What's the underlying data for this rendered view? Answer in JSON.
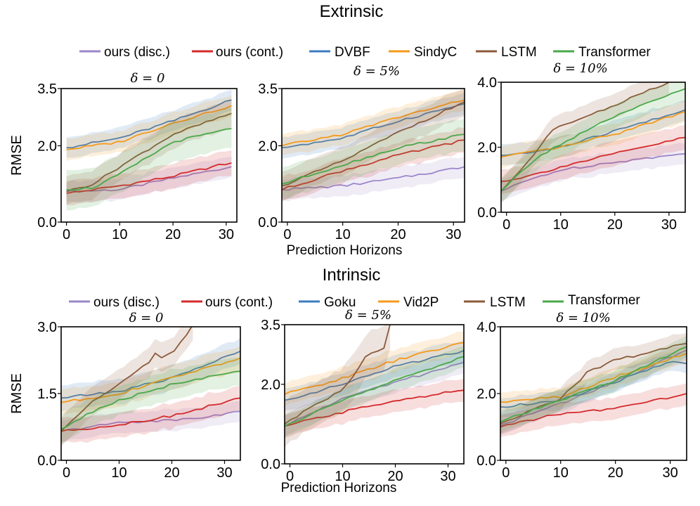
{
  "figure": {
    "rows": [
      {
        "title": "Extrinsic",
        "xlabel": "Prediction Horizons",
        "legend": [
          {
            "label": "ours (disc.)",
            "color": "#9c86c9"
          },
          {
            "label": "ours (cont.)",
            "color": "#d42a2a"
          },
          {
            "label": "DVBF",
            "color": "#3b7bbf"
          },
          {
            "label": "SindyC",
            "color": "#f59a1c"
          },
          {
            "label": "LSTM",
            "color": "#8c5a3a"
          },
          {
            "label": "Transformer",
            "color": "#4aa84a"
          }
        ]
      },
      {
        "title": "Intrinsic",
        "xlabel": "Prediction Horizons",
        "legend": [
          {
            "label": "ours (disc.)",
            "color": "#9c86c9"
          },
          {
            "label": "ours (cont.)",
            "color": "#d42a2a"
          },
          {
            "label": "Goku",
            "color": "#3b7bbf"
          },
          {
            "label": "Vid2P",
            "color": "#f59a1c"
          },
          {
            "label": "LSTM",
            "color": "#8c5a3a"
          },
          {
            "label": "Transformer",
            "color": "#4aa84a"
          }
        ]
      }
    ]
  },
  "chart_data": [
    {
      "type": "line",
      "row": "Extrinsic",
      "title": "δ = 0",
      "ylabel": "RMSE",
      "xlim": [
        -1,
        32
      ],
      "ylim": [
        0,
        3.5
      ],
      "xticks": [
        0,
        10,
        20,
        30
      ],
      "yticks": [
        {
          "v": 0,
          "l": "0.0"
        },
        {
          "v": 2.0,
          "l": "2.0"
        },
        {
          "v": 3.5,
          "l": "3.5"
        }
      ],
      "series": [
        {
          "name": "ours (disc.)",
          "points": [
            [
              0,
              0.8
            ],
            [
              10,
              0.85
            ],
            [
              20,
              1.15
            ],
            [
              31,
              1.45
            ]
          ],
          "band": 0.3
        },
        {
          "name": "ours (cont.)",
          "points": [
            [
              0,
              0.75
            ],
            [
              10,
              0.95
            ],
            [
              20,
              1.2
            ],
            [
              29,
              1.5
            ],
            [
              31,
              1.55
            ]
          ],
          "band": 0.35
        },
        {
          "name": "DVBF",
          "points": [
            [
              0,
              1.95
            ],
            [
              10,
              2.2
            ],
            [
              20,
              2.65
            ],
            [
              31,
              3.2
            ]
          ],
          "band": 0.3
        },
        {
          "name": "SindyC",
          "points": [
            [
              0,
              1.9
            ],
            [
              10,
              2.1
            ],
            [
              20,
              2.6
            ],
            [
              31,
              3.05
            ]
          ],
          "band": 0.3
        },
        {
          "name": "LSTM",
          "points": [
            [
              0,
              0.8
            ],
            [
              5,
              1.0
            ],
            [
              10,
              1.45
            ],
            [
              20,
              2.3
            ],
            [
              31,
              2.85
            ]
          ],
          "band": 0.4
        },
        {
          "name": "Transformer",
          "points": [
            [
              0,
              0.85
            ],
            [
              5,
              0.9
            ],
            [
              10,
              1.25
            ],
            [
              20,
              2.1
            ],
            [
              31,
              2.45
            ]
          ],
          "band": 0.55
        }
      ]
    },
    {
      "type": "line",
      "row": "Extrinsic",
      "title": "δ = 5%",
      "ylabel": "",
      "xlim": [
        -1,
        32
      ],
      "ylim": [
        0,
        3.5
      ],
      "xticks": [
        0,
        10,
        20,
        30
      ],
      "yticks": [
        {
          "v": 0,
          "l": "0.0"
        },
        {
          "v": 2.0,
          "l": "2.0"
        },
        {
          "v": 3.5,
          "l": "3.5"
        }
      ],
      "series": [
        {
          "name": "ours (disc.)",
          "points": [
            [
              -1,
              0.85
            ],
            [
              10,
              0.95
            ],
            [
              20,
              1.15
            ],
            [
              32,
              1.45
            ]
          ],
          "band": 0.3
        },
        {
          "name": "ours (cont.)",
          "points": [
            [
              -1,
              0.85
            ],
            [
              10,
              1.35
            ],
            [
              20,
              1.75
            ],
            [
              32,
              2.15
            ]
          ],
          "band": 0.35
        },
        {
          "name": "DVBF",
          "points": [
            [
              -1,
              1.95
            ],
            [
              10,
              2.2
            ],
            [
              20,
              2.65
            ],
            [
              32,
              3.1
            ]
          ],
          "band": 0.3
        },
        {
          "name": "SindyC",
          "points": [
            [
              -1,
              2.0
            ],
            [
              10,
              2.3
            ],
            [
              20,
              2.75
            ],
            [
              32,
              3.2
            ]
          ],
          "band": 0.3
        },
        {
          "name": "LSTM",
          "points": [
            [
              -1,
              0.95
            ],
            [
              10,
              1.6
            ],
            [
              20,
              2.35
            ],
            [
              32,
              3.15
            ]
          ],
          "band": 0.4
        },
        {
          "name": "Transformer",
          "points": [
            [
              -1,
              1.0
            ],
            [
              10,
              1.5
            ],
            [
              20,
              1.95
            ],
            [
              32,
              2.3
            ]
          ],
          "band": 0.45
        }
      ]
    },
    {
      "type": "line",
      "row": "Extrinsic",
      "title": "δ = 10%",
      "ylabel": "",
      "xlim": [
        -1,
        33
      ],
      "ylim": [
        0,
        4.0
      ],
      "xticks": [
        0,
        10,
        20,
        30
      ],
      "yticks": [
        {
          "v": 0,
          "l": "0.0"
        },
        {
          "v": 2.0,
          "l": "2.0"
        },
        {
          "v": 4.0,
          "l": "4.0"
        }
      ],
      "series": [
        {
          "name": "ours (disc.)",
          "points": [
            [
              -1,
              0.65
            ],
            [
              5,
              1.05
            ],
            [
              10,
              1.3
            ],
            [
              20,
              1.55
            ],
            [
              33,
              1.8
            ]
          ],
          "band": 0.35
        },
        {
          "name": "ours (cont.)",
          "points": [
            [
              -1,
              0.95
            ],
            [
              5,
              1.15
            ],
            [
              10,
              1.4
            ],
            [
              20,
              1.8
            ],
            [
              33,
              2.3
            ]
          ],
          "band": 0.4
        },
        {
          "name": "DVBF",
          "points": [
            [
              -1,
              1.75
            ],
            [
              5,
              1.85
            ],
            [
              10,
              2.0
            ],
            [
              20,
              2.5
            ],
            [
              33,
              3.15
            ]
          ],
          "band": 0.35
        },
        {
          "name": "SindyC",
          "points": [
            [
              -1,
              1.7
            ],
            [
              5,
              1.85
            ],
            [
              10,
              2.0
            ],
            [
              20,
              2.4
            ],
            [
              33,
              3.1
            ]
          ],
          "band": 0.35
        },
        {
          "name": "LSTM",
          "points": [
            [
              -1,
              0.65
            ],
            [
              5,
              1.75
            ],
            [
              8,
              2.5
            ],
            [
              20,
              3.3
            ],
            [
              30,
              4.0
            ]
          ],
          "band": 0.4
        },
        {
          "name": "Transformer",
          "points": [
            [
              -1,
              0.65
            ],
            [
              5,
              1.6
            ],
            [
              10,
              2.1
            ],
            [
              20,
              2.95
            ],
            [
              33,
              3.8
            ]
          ],
          "band": 0.4
        }
      ]
    },
    {
      "type": "line",
      "row": "Intrinsic",
      "title": "δ = 0",
      "ylabel": "RMSE",
      "xlim": [
        -1,
        33
      ],
      "ylim": [
        0,
        3.0
      ],
      "xticks": [
        0,
        10,
        20,
        30
      ],
      "yticks": [
        {
          "v": 0,
          "l": "0.0"
        },
        {
          "v": 1.5,
          "l": "1.5"
        },
        {
          "v": 3.0,
          "l": "3.0"
        }
      ],
      "series": [
        {
          "name": "ours (disc.)",
          "points": [
            [
              -1,
              0.65
            ],
            [
              10,
              0.85
            ],
            [
              20,
              0.9
            ],
            [
              25,
              0.95
            ],
            [
              33,
              1.1
            ]
          ],
          "band": 0.25
        },
        {
          "name": "ours (cont.)",
          "points": [
            [
              -1,
              0.65
            ],
            [
              10,
              0.8
            ],
            [
              20,
              1.0
            ],
            [
              33,
              1.4
            ]
          ],
          "band": 0.3
        },
        {
          "name": "Goku",
          "points": [
            [
              -1,
              1.4
            ],
            [
              10,
              1.55
            ],
            [
              20,
              1.85
            ],
            [
              33,
              2.45
            ]
          ],
          "band": 0.3
        },
        {
          "name": "Vid2P",
          "points": [
            [
              -1,
              1.3
            ],
            [
              10,
              1.5
            ],
            [
              20,
              1.85
            ],
            [
              33,
              2.3
            ]
          ],
          "band": 0.3
        },
        {
          "name": "LSTM",
          "points": [
            [
              -1,
              0.65
            ],
            [
              5,
              1.35
            ],
            [
              10,
              1.7
            ],
            [
              13,
              2.0
            ],
            [
              16,
              2.2
            ],
            [
              17,
              2.45
            ],
            [
              18,
              2.3
            ],
            [
              20,
              2.4
            ],
            [
              22,
              2.7
            ],
            [
              24,
              3.05
            ]
          ],
          "band": 0.35
        },
        {
          "name": "Transformer",
          "points": [
            [
              -1,
              0.7
            ],
            [
              5,
              1.1
            ],
            [
              10,
              1.35
            ],
            [
              20,
              1.7
            ],
            [
              33,
              2.0
            ]
          ],
          "band": 0.35
        }
      ]
    },
    {
      "type": "line",
      "row": "Intrinsic",
      "title": "δ = 5%",
      "ylabel": "",
      "xlim": [
        -1,
        33
      ],
      "ylim": [
        0,
        3.5
      ],
      "xticks": [
        0,
        10,
        20,
        30
      ],
      "yticks": [
        {
          "v": 0,
          "l": "0.0"
        },
        {
          "v": 2.0,
          "l": "2.0"
        },
        {
          "v": 3.5,
          "l": "3.5"
        }
      ],
      "series": [
        {
          "name": "ours (disc.)",
          "points": [
            [
              -1,
              0.95
            ],
            [
              10,
              1.65
            ],
            [
              20,
              2.05
            ],
            [
              33,
              2.55
            ]
          ],
          "band": 0.3
        },
        {
          "name": "ours (cont.)",
          "points": [
            [
              -1,
              0.95
            ],
            [
              10,
              1.3
            ],
            [
              20,
              1.6
            ],
            [
              33,
              1.85
            ]
          ],
          "band": 0.3
        },
        {
          "name": "Goku",
          "points": [
            [
              -1,
              1.6
            ],
            [
              10,
              2.0
            ],
            [
              20,
              2.45
            ],
            [
              33,
              2.85
            ]
          ],
          "band": 0.3
        },
        {
          "name": "Vid2P",
          "points": [
            [
              -1,
              1.75
            ],
            [
              10,
              2.15
            ],
            [
              20,
              2.6
            ],
            [
              33,
              3.05
            ]
          ],
          "band": 0.3
        },
        {
          "name": "LSTM",
          "points": [
            [
              -1,
              1.0
            ],
            [
              5,
              1.5
            ],
            [
              10,
              1.85
            ],
            [
              15,
              2.8
            ],
            [
              18,
              2.9
            ],
            [
              19,
              3.5
            ]
          ],
          "band": 0.6
        },
        {
          "name": "Transformer",
          "points": [
            [
              -1,
              0.95
            ],
            [
              10,
              1.6
            ],
            [
              20,
              2.1
            ],
            [
              33,
              2.7
            ]
          ],
          "band": 0.3
        }
      ]
    },
    {
      "type": "line",
      "row": "Intrinsic",
      "title": "δ = 10%",
      "ylabel": "",
      "xlim": [
        -1,
        33
      ],
      "ylim": [
        0,
        4.0
      ],
      "xticks": [
        0,
        10,
        20,
        30
      ],
      "yticks": [
        {
          "v": 0,
          "l": "0.0"
        },
        {
          "v": 2.0,
          "l": "2.0"
        },
        {
          "v": 4.0,
          "l": "4.0"
        }
      ],
      "series": [
        {
          "name": "ours (disc.)",
          "points": [
            [
              -1,
              1.05
            ],
            [
              10,
              1.7
            ],
            [
              20,
              2.35
            ],
            [
              33,
              3.3
            ]
          ],
          "band": 0.3
        },
        {
          "name": "ours (cont.)",
          "points": [
            [
              -1,
              1.0
            ],
            [
              10,
              1.4
            ],
            [
              20,
              1.55
            ],
            [
              33,
              2.0
            ]
          ],
          "band": 0.35
        },
        {
          "name": "Goku",
          "points": [
            [
              -1,
              1.6
            ],
            [
              10,
              1.8
            ],
            [
              20,
              2.35
            ],
            [
              31,
              3.0
            ],
            [
              33,
              2.9
            ]
          ],
          "band": 0.3
        },
        {
          "name": "Vid2P",
          "points": [
            [
              -1,
              1.75
            ],
            [
              10,
              1.9
            ],
            [
              20,
              2.5
            ],
            [
              33,
              3.2
            ]
          ],
          "band": 0.3
        },
        {
          "name": "LSTM",
          "points": [
            [
              -1,
              1.1
            ],
            [
              10,
              1.85
            ],
            [
              15,
              2.65
            ],
            [
              20,
              3.0
            ],
            [
              33,
              3.5
            ]
          ],
          "band": 0.35
        },
        {
          "name": "Transformer",
          "points": [
            [
              -1,
              1.15
            ],
            [
              10,
              1.8
            ],
            [
              20,
              2.4
            ],
            [
              33,
              3.4
            ]
          ],
          "band": 0.35
        }
      ]
    }
  ]
}
